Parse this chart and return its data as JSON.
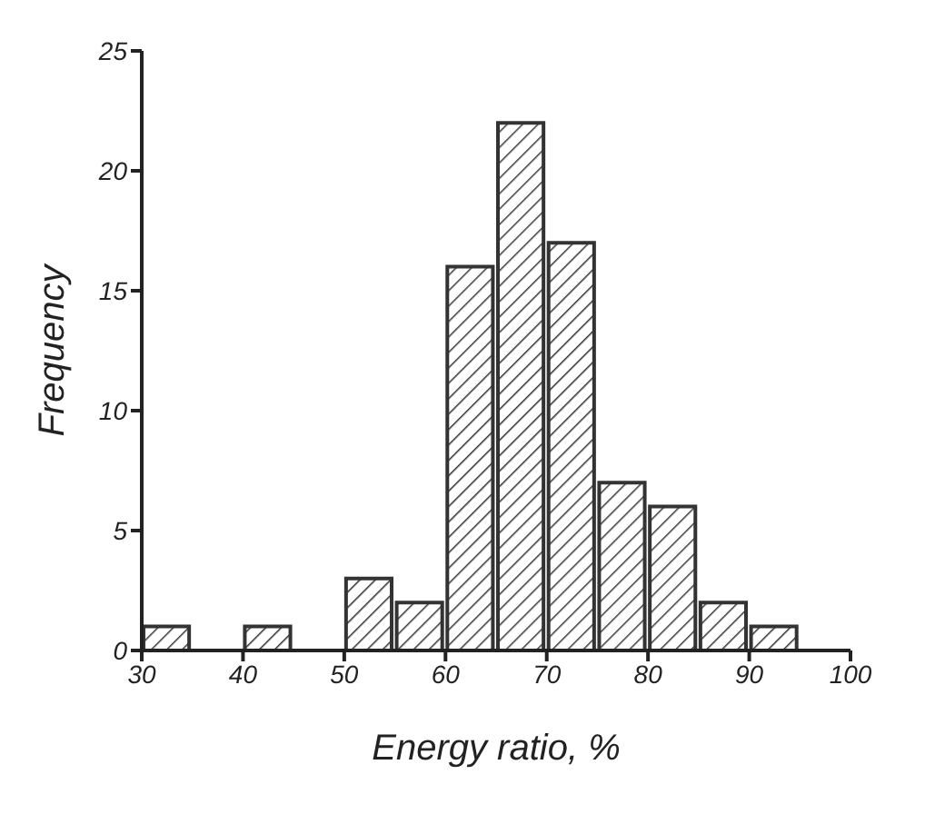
{
  "chart_data": {
    "type": "histogram",
    "xlabel": "Energy ratio, %",
    "ylabel": "Frequency",
    "bins": [
      30,
      35,
      40,
      45,
      50,
      55,
      60,
      65,
      70,
      75,
      80,
      85,
      90,
      95
    ],
    "values": [
      1,
      0,
      1,
      0,
      3,
      2,
      16,
      22,
      17,
      7,
      6,
      2,
      1
    ],
    "color": "#333333",
    "xlim": [
      30,
      100
    ],
    "xticks": [
      30,
      40,
      50,
      60,
      70,
      80,
      90,
      100
    ],
    "ylim": [
      0,
      25
    ],
    "yticks": [
      0,
      5,
      10,
      15,
      20,
      25
    ],
    "grid": false
  }
}
